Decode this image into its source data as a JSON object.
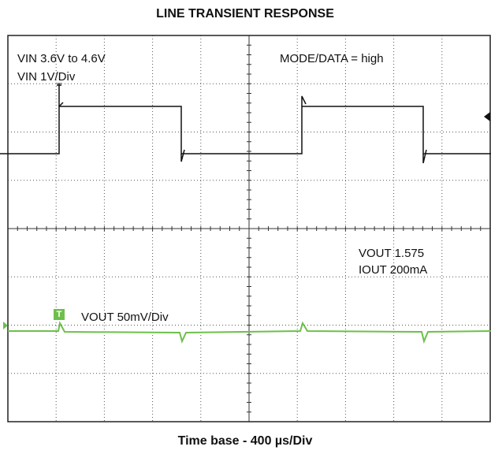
{
  "title": "LINE TRANSIENT RESPONSE",
  "annotations": [
    "VIN 3.6V to 4.6V",
    "VIN 1V/Div",
    "MODE/DATA = high",
    "VOUT 1.575",
    "IOUT 200mA",
    "VOUT 50mV/Div"
  ],
  "markers": [
    "T",
    "T"
  ],
  "x_axis_label": "Time base - 400 µs/Div"
}
